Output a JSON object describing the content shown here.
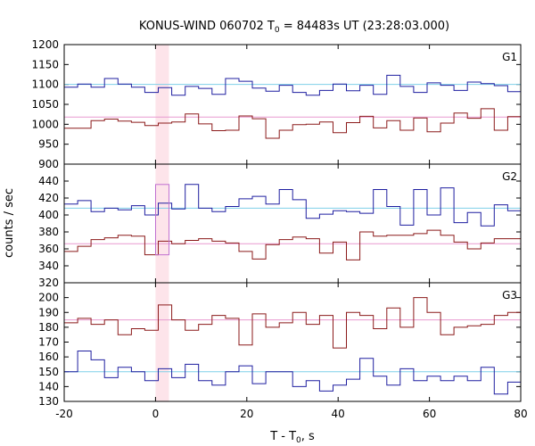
{
  "title": {
    "prefix": "KONUS-WIND 060702 T",
    "sub": "0",
    "suffix": " = 84483s UT (23:28:03.000)"
  },
  "chart_data": {
    "type": "line",
    "shared_x": {
      "label_prefix": "T - T",
      "label_sub": "0",
      "label_suffix": ", s",
      "lim": [
        -20,
        80
      ],
      "ticks": [
        -20,
        0,
        20,
        40,
        60,
        80
      ],
      "tick_labels": [
        "-20",
        "0",
        "20",
        "40",
        "60",
        "80"
      ]
    },
    "ylabel": "counts / sec",
    "highlight_interval": [
      0,
      2.944
    ],
    "highlight_color": "#fde4ea",
    "bin_width": 2.944,
    "x_start": -20,
    "panels": [
      {
        "name": "G1",
        "ylim": [
          900,
          1200
        ],
        "yticks": [
          900,
          950,
          1000,
          1050,
          1100,
          1150,
          1200
        ],
        "ytick_labels": [
          "900",
          "950",
          "1000",
          "1050",
          "1100",
          "1150",
          "1200"
        ],
        "series": [
          {
            "color": "#1f1fa0",
            "values": [
              1093,
              1101,
              1093,
              1115,
              1101,
              1093,
              1080,
              1092,
              1073,
              1095,
              1090,
              1075,
              1115,
              1108,
              1091,
              1083,
              1098,
              1080,
              1073,
              1085,
              1101,
              1084,
              1098,
              1075,
              1123,
              1095,
              1080,
              1104,
              1098,
              1085,
              1106,
              1102,
              1097,
              1082,
              1066,
              1092,
              1104,
              1108,
              1106,
              1080,
              1074
            ],
            "mean": 1100,
            "mean_color": "#7fd0e8"
          },
          {
            "color": "#8b1a1a",
            "values": [
              990,
              990,
              1009,
              1013,
              1008,
              1005,
              997,
              1003,
              1006,
              1026,
              1001,
              984,
              985,
              1021,
              1014,
              965,
              985,
              999,
              1000,
              1006,
              979,
              1004,
              1020,
              991,
              1009,
              985,
              1016,
              981,
              1003,
              1028,
              1015,
              1039,
              985,
              1019,
              1019,
              1020,
              1030,
              1028,
              1020,
              1008,
              1020
            ],
            "mean": 1018,
            "mean_color": "#e89ad0"
          }
        ]
      },
      {
        "name": "G2",
        "ylim": [
          320,
          460
        ],
        "yticks": [
          320,
          340,
          360,
          380,
          400,
          420,
          440
        ],
        "ytick_labels": [
          "320",
          "340",
          "360",
          "380",
          "400",
          "420",
          "440"
        ],
        "series": [
          {
            "color": "#1f1fa0",
            "values": [
              413,
              417,
              404,
              408,
              406,
              411,
              400,
              414,
              407,
              436,
              408,
              404,
              410,
              419,
              422,
              413,
              430,
              418,
              396,
              401,
              405,
              404,
              402,
              430,
              410,
              388,
              430,
              400,
              432,
              391,
              403,
              387,
              412,
              405,
              418,
              420,
              401,
              398,
              425,
              413,
              406
            ],
            "mean": 408,
            "mean_color": "#7fd0e8"
          },
          {
            "color": "#8b1a1a",
            "values": [
              357,
              363,
              371,
              373,
              376,
              375,
              353,
              369,
              366,
              370,
              372,
              369,
              367,
              357,
              348,
              365,
              371,
              374,
              372,
              355,
              368,
              347,
              380,
              375,
              376,
              376,
              378,
              382,
              376,
              368,
              360,
              367,
              372,
              372,
              372,
              378,
              372,
              360,
              377,
              365,
              356
            ],
            "mean": 366,
            "mean_color": "#e89ad0"
          }
        ]
      },
      {
        "name": "G3",
        "ylim": [
          130,
          210
        ],
        "yticks": [
          130,
          140,
          150,
          160,
          170,
          180,
          190,
          200
        ],
        "ytick_labels": [
          "130",
          "140",
          "150",
          "160",
          "170",
          "180",
          "190",
          "200"
        ],
        "series": [
          {
            "color": "#1f1fa0",
            "values": [
              150,
              164,
              158,
              146,
              153,
              150,
              144,
              152,
              146,
              155,
              144,
              141,
              150,
              154,
              142,
              150,
              150,
              140,
              144,
              137,
              141,
              145,
              159,
              147,
              141,
              152,
              144,
              147,
              144,
              147,
              144,
              153,
              135,
              143,
              157,
              140,
              144,
              150,
              147,
              151,
              155
            ],
            "mean": 150,
            "mean_color": "#7fd0e8"
          },
          {
            "color": "#8b1a1a",
            "values": [
              183,
              186,
              182,
              185,
              175,
              179,
              178,
              195,
              185,
              178,
              182,
              188,
              186,
              168,
              189,
              180,
              183,
              190,
              182,
              188,
              166,
              190,
              188,
              179,
              193,
              180,
              200,
              190,
              175,
              180,
              181,
              182,
              188,
              190,
              178,
              193,
              180,
              177,
              179,
              180,
              177
            ],
            "mean": 185,
            "mean_color": "#e89ad0"
          }
        ]
      }
    ]
  }
}
